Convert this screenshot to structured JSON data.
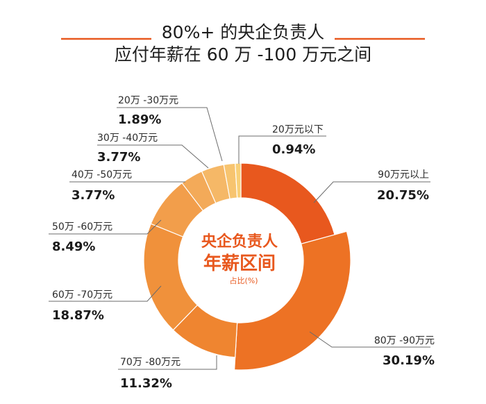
{
  "chart_data": {
    "type": "pie",
    "variant": "donut",
    "title_lines": [
      "80%+ 的央企负责人",
      "应付年薪在 60 万 -100 万元之间"
    ],
    "center_label": {
      "line1": "央企负责人",
      "line2": "年薪区间",
      "line3": "占比(%)"
    },
    "unit": "%",
    "slices": [
      {
        "label": "90万元以上",
        "value": 20.75,
        "value_text": "20.75%",
        "color": "#e8581e"
      },
      {
        "label": "80万 -90万元",
        "value": 30.19,
        "value_text": "30.19%",
        "color": "#ed7224"
      },
      {
        "label": "70万 -80万元",
        "value": 11.32,
        "value_text": "11.32%",
        "color": "#ef8530"
      },
      {
        "label": "60万 -70万元",
        "value": 18.87,
        "value_text": "18.87%",
        "color": "#f0913b"
      },
      {
        "label": "50万 -60万元",
        "value": 8.49,
        "value_text": "8.49%",
        "color": "#f29e4b"
      },
      {
        "label": "40万 -50万元",
        "value": 3.77,
        "value_text": "3.77%",
        "color": "#f3aa59"
      },
      {
        "label": "30万 -40万元",
        "value": 3.77,
        "value_text": "3.77%",
        "color": "#f5b867"
      },
      {
        "label": "20万 -30万元",
        "value": 1.89,
        "value_text": "1.89%",
        "color": "#f7c46f"
      },
      {
        "label": "20万元以下",
        "value": 0.94,
        "value_text": "0.94%",
        "color": "#f8d078"
      }
    ],
    "highlight_label": "80万 -90万元",
    "accent_color": "#e8581e"
  }
}
